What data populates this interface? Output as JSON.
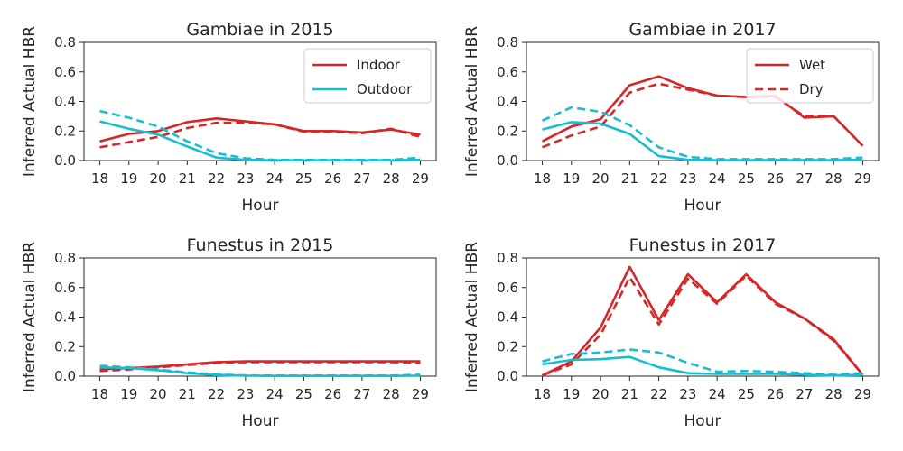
{
  "colors": {
    "indoor": "#d62728",
    "outdoor": "#17becf"
  },
  "chart_data": [
    {
      "type": "line",
      "title": "Gambiae in 2015",
      "xlabel": "Hour",
      "ylabel": "Inferred Actual HBR",
      "x": [
        18,
        19,
        20,
        21,
        22,
        23,
        24,
        25,
        26,
        27,
        28,
        29
      ],
      "ylim": [
        0,
        0.8
      ],
      "yticks": [
        "0.0",
        "0.2",
        "0.4",
        "0.6",
        "0.8"
      ],
      "legend": {
        "placement": "top-right",
        "entries": [
          {
            "label": "Indoor",
            "color": "#d62728",
            "style": "solid"
          },
          {
            "label": "Outdoor",
            "color": "#17becf",
            "style": "solid"
          }
        ]
      },
      "series": [
        {
          "location": "indoor",
          "season": "wet",
          "color": "#d62728",
          "style": "solid",
          "values": [
            0.13,
            0.18,
            0.2,
            0.26,
            0.285,
            0.265,
            0.245,
            0.2,
            0.2,
            0.19,
            0.21,
            0.175
          ]
        },
        {
          "location": "indoor",
          "season": "dry",
          "color": "#d62728",
          "style": "dashed",
          "values": [
            0.09,
            0.125,
            0.16,
            0.22,
            0.255,
            0.255,
            0.245,
            0.195,
            0.195,
            0.185,
            0.215,
            0.16
          ]
        },
        {
          "location": "outdoor",
          "season": "wet",
          "color": "#17becf",
          "style": "solid",
          "values": [
            0.265,
            0.215,
            0.175,
            0.095,
            0.02,
            0.005,
            0.002,
            0.002,
            0.002,
            0.002,
            0.002,
            0.005
          ]
        },
        {
          "location": "outdoor",
          "season": "dry",
          "color": "#17becf",
          "style": "dashed",
          "values": [
            0.335,
            0.29,
            0.23,
            0.13,
            0.05,
            0.015,
            0.005,
            0.005,
            0.005,
            0.005,
            0.005,
            0.02
          ]
        }
      ]
    },
    {
      "type": "line",
      "title": "Gambiae in 2017",
      "xlabel": "Hour",
      "ylabel": "Inferred Actual HBR",
      "x": [
        18,
        19,
        20,
        21,
        22,
        23,
        24,
        25,
        26,
        27,
        28,
        29
      ],
      "ylim": [
        0,
        0.8
      ],
      "yticks": [
        "0.0",
        "0.2",
        "0.4",
        "0.6",
        "0.8"
      ],
      "legend": {
        "placement": "top-right",
        "entries": [
          {
            "label": "Wet",
            "color": "#d62728",
            "style": "solid"
          },
          {
            "label": "Dry",
            "color": "#d62728",
            "style": "dashed"
          }
        ]
      },
      "series": [
        {
          "location": "indoor",
          "season": "wet",
          "color": "#d62728",
          "style": "solid",
          "values": [
            0.13,
            0.23,
            0.28,
            0.51,
            0.57,
            0.49,
            0.44,
            0.43,
            0.44,
            0.29,
            0.3,
            0.1
          ]
        },
        {
          "location": "indoor",
          "season": "dry",
          "color": "#d62728",
          "style": "dashed",
          "values": [
            0.09,
            0.17,
            0.23,
            0.46,
            0.52,
            0.48,
            0.44,
            0.43,
            0.43,
            0.3,
            0.3,
            0.1
          ]
        },
        {
          "location": "outdoor",
          "season": "wet",
          "color": "#17becf",
          "style": "solid",
          "values": [
            0.21,
            0.26,
            0.25,
            0.18,
            0.03,
            0.005,
            0.003,
            0.003,
            0.003,
            0.003,
            0.003,
            0.005
          ]
        },
        {
          "location": "outdoor",
          "season": "dry",
          "color": "#17becf",
          "style": "dashed",
          "values": [
            0.27,
            0.36,
            0.33,
            0.24,
            0.09,
            0.025,
            0.01,
            0.01,
            0.01,
            0.01,
            0.01,
            0.02
          ]
        }
      ]
    },
    {
      "type": "line",
      "title": "Funestus in 2015",
      "xlabel": "Hour",
      "ylabel": "Inferred Actual HBR",
      "x": [
        18,
        19,
        20,
        21,
        22,
        23,
        24,
        25,
        26,
        27,
        28,
        29
      ],
      "ylim": [
        0,
        0.8
      ],
      "yticks": [
        "0.0",
        "0.2",
        "0.4",
        "0.6",
        "0.8"
      ],
      "series": [
        {
          "location": "indoor",
          "season": "wet",
          "color": "#d62728",
          "style": "solid",
          "values": [
            0.045,
            0.055,
            0.065,
            0.08,
            0.095,
            0.1,
            0.1,
            0.1,
            0.1,
            0.1,
            0.1,
            0.1
          ]
        },
        {
          "location": "indoor",
          "season": "dry",
          "color": "#d62728",
          "style": "dashed",
          "values": [
            0.035,
            0.045,
            0.06,
            0.075,
            0.09,
            0.095,
            0.095,
            0.095,
            0.095,
            0.095,
            0.095,
            0.09
          ]
        },
        {
          "location": "outdoor",
          "season": "wet",
          "color": "#17becf",
          "style": "solid",
          "values": [
            0.06,
            0.055,
            0.04,
            0.02,
            0.008,
            0.003,
            0.002,
            0.002,
            0.002,
            0.002,
            0.002,
            0.003
          ]
        },
        {
          "location": "outdoor",
          "season": "dry",
          "color": "#17becf",
          "style": "dashed",
          "values": [
            0.07,
            0.06,
            0.045,
            0.025,
            0.012,
            0.005,
            0.004,
            0.004,
            0.004,
            0.004,
            0.004,
            0.01
          ]
        }
      ]
    },
    {
      "type": "line",
      "title": "Funestus in 2017",
      "xlabel": "Hour",
      "ylabel": "Inferred Actual HBR",
      "x": [
        18,
        19,
        20,
        21,
        22,
        23,
        24,
        25,
        26,
        27,
        28,
        29
      ],
      "ylim": [
        0,
        0.8
      ],
      "yticks": [
        "0.0",
        "0.2",
        "0.4",
        "0.6",
        "0.8"
      ],
      "series": [
        {
          "location": "indoor",
          "season": "wet",
          "color": "#d62728",
          "style": "solid",
          "values": [
            0.005,
            0.1,
            0.33,
            0.74,
            0.38,
            0.69,
            0.5,
            0.69,
            0.5,
            0.39,
            0.25,
            0.01
          ]
        },
        {
          "location": "indoor",
          "season": "dry",
          "color": "#d62728",
          "style": "dashed",
          "values": [
            0.005,
            0.08,
            0.28,
            0.67,
            0.35,
            0.66,
            0.49,
            0.68,
            0.49,
            0.39,
            0.24,
            0.01
          ]
        },
        {
          "location": "outdoor",
          "season": "wet",
          "color": "#17becf",
          "style": "solid",
          "values": [
            0.08,
            0.11,
            0.115,
            0.13,
            0.06,
            0.02,
            0.015,
            0.015,
            0.015,
            0.01,
            0.005,
            0.01
          ]
        },
        {
          "location": "outdoor",
          "season": "dry",
          "color": "#17becf",
          "style": "dashed",
          "values": [
            0.1,
            0.15,
            0.16,
            0.18,
            0.16,
            0.09,
            0.03,
            0.035,
            0.03,
            0.02,
            0.01,
            0.02
          ]
        }
      ]
    }
  ]
}
